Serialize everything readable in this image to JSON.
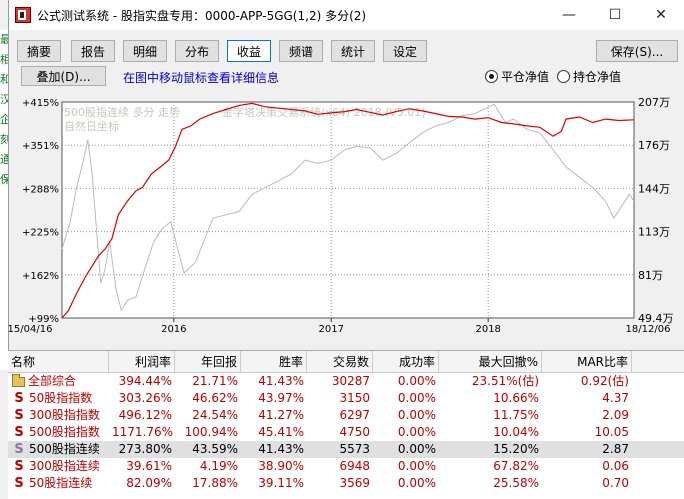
{
  "window": {
    "title": "公式测试系统 - 股指实盘专用：0000-APP-5GG(1,2) 多分(2)",
    "minimize_glyph": "—",
    "maximize_glyph": "☐",
    "close_glyph": "✕"
  },
  "toolbar": {
    "tabs": [
      "摘要",
      "报告",
      "明细",
      "分布",
      "收益",
      "频谱",
      "统计",
      "设定"
    ],
    "active_tab": "收益",
    "save_label": "保存(S)..."
  },
  "options": {
    "overlay_label": "叠加(D)...",
    "hint": "在图中移动鼠标查看详细信息",
    "radio_close": "平仓净值",
    "radio_hold": "持仓净值"
  },
  "background_strip": [
    "最",
    "相",
    "和",
    "汉",
    "企",
    "刻",
    "通",
    "保"
  ],
  "chart": {
    "watermark1": "500股指连续 多分 走势",
    "watermark2": "自然日坐标",
    "watermark3": "金字塔决策交易系统(x64) 2018 (V5.01)",
    "left_ticks": [
      "+415%",
      "+351%",
      "+288%",
      "+225%",
      "+162%",
      "+99%"
    ],
    "right_ticks": [
      "207万",
      "176万",
      "144万",
      "113万",
      "81万",
      "49.4万"
    ],
    "x_ticks": [
      "15/04/16",
      "2016",
      "2017",
      "2018",
      "18/12/06"
    ],
    "colors": {
      "equity": "#dd0000",
      "index": "#bbbbbb",
      "grid": "#9a9a9a",
      "plot_bg": "#ffffff"
    }
  },
  "chart_data": {
    "type": "line",
    "x_range": [
      "2015-04-16",
      "2018-12-06"
    ],
    "y_left_ticks": [
      "+415%",
      "+351%",
      "+288%",
      "+225%",
      "+162%",
      "+99%"
    ],
    "y_right_ticks": [
      "207万",
      "176万",
      "144万",
      "113万",
      "81万",
      "49.4万"
    ],
    "ylim_left_pct": [
      99,
      415
    ],
    "series": [
      {
        "color": "#dd0000",
        "points": [
          [
            "2015-04-16",
            99
          ],
          [
            "2015-05-01",
            110
          ],
          [
            "2015-05-20",
            135
          ],
          [
            "2015-06-10",
            160
          ],
          [
            "2015-06-25",
            175
          ],
          [
            "2015-07-10",
            190
          ],
          [
            "2015-07-25",
            200
          ],
          [
            "2015-08-10",
            215
          ],
          [
            "2015-08-25",
            250
          ],
          [
            "2015-09-15",
            270
          ],
          [
            "2015-10-05",
            285
          ],
          [
            "2015-10-20",
            290
          ],
          [
            "2015-11-10",
            310
          ],
          [
            "2015-12-01",
            320
          ],
          [
            "2015-12-20",
            330
          ],
          [
            "2016-01-05",
            350
          ],
          [
            "2016-01-20",
            375
          ],
          [
            "2016-02-10",
            380
          ],
          [
            "2016-03-01",
            390
          ],
          [
            "2016-04-01",
            398
          ],
          [
            "2016-05-01",
            404
          ],
          [
            "2016-06-01",
            410
          ],
          [
            "2016-07-01",
            413
          ],
          [
            "2016-08-01",
            408
          ],
          [
            "2016-09-01",
            406
          ],
          [
            "2016-10-01",
            404
          ],
          [
            "2016-11-01",
            402
          ],
          [
            "2016-12-01",
            397
          ],
          [
            "2017-01-01",
            399
          ],
          [
            "2017-02-01",
            401
          ],
          [
            "2017-03-01",
            404
          ],
          [
            "2017-04-01",
            400
          ],
          [
            "2017-05-01",
            396
          ],
          [
            "2017-06-01",
            401
          ],
          [
            "2017-07-01",
            405
          ],
          [
            "2017-08-01",
            402
          ],
          [
            "2017-09-01",
            398
          ],
          [
            "2017-10-01",
            394
          ],
          [
            "2017-11-01",
            393
          ],
          [
            "2017-12-01",
            390
          ],
          [
            "2018-01-01",
            392
          ],
          [
            "2018-02-01",
            385
          ],
          [
            "2018-03-01",
            383
          ],
          [
            "2018-04-01",
            380
          ],
          [
            "2018-05-01",
            378
          ],
          [
            "2018-06-01",
            365
          ],
          [
            "2018-06-20",
            372
          ],
          [
            "2018-07-01",
            390
          ],
          [
            "2018-08-01",
            393
          ],
          [
            "2018-09-01",
            385
          ],
          [
            "2018-10-01",
            390
          ],
          [
            "2018-11-01",
            388
          ],
          [
            "2018-12-06",
            389
          ]
        ]
      },
      {
        "color": "#bbbbbb",
        "points": [
          [
            "2015-04-16",
            200
          ],
          [
            "2015-05-05",
            240
          ],
          [
            "2015-05-20",
            290
          ],
          [
            "2015-06-05",
            330
          ],
          [
            "2015-06-15",
            360
          ],
          [
            "2015-06-25",
            310
          ],
          [
            "2015-07-05",
            230
          ],
          [
            "2015-07-15",
            150
          ],
          [
            "2015-07-25",
            170
          ],
          [
            "2015-08-05",
            210
          ],
          [
            "2015-08-20",
            140
          ],
          [
            "2015-09-01",
            110
          ],
          [
            "2015-09-15",
            125
          ],
          [
            "2015-10-05",
            130
          ],
          [
            "2015-10-25",
            170
          ],
          [
            "2015-11-15",
            210
          ],
          [
            "2015-12-05",
            230
          ],
          [
            "2015-12-25",
            240
          ],
          [
            "2016-01-10",
            200
          ],
          [
            "2016-01-25",
            165
          ],
          [
            "2016-02-20",
            180
          ],
          [
            "2016-03-10",
            210
          ],
          [
            "2016-04-01",
            245
          ],
          [
            "2016-05-01",
            250
          ],
          [
            "2016-06-01",
            255
          ],
          [
            "2016-07-01",
            280
          ],
          [
            "2016-08-01",
            290
          ],
          [
            "2016-09-01",
            300
          ],
          [
            "2016-10-01",
            310
          ],
          [
            "2016-11-01",
            330
          ],
          [
            "2016-12-01",
            325
          ],
          [
            "2017-01-01",
            330
          ],
          [
            "2017-02-01",
            345
          ],
          [
            "2017-03-01",
            350
          ],
          [
            "2017-04-01",
            348
          ],
          [
            "2017-05-01",
            330
          ],
          [
            "2017-06-01",
            340
          ],
          [
            "2017-07-01",
            355
          ],
          [
            "2017-08-01",
            370
          ],
          [
            "2017-09-01",
            380
          ],
          [
            "2017-10-01",
            385
          ],
          [
            "2017-11-01",
            395
          ],
          [
            "2017-12-01",
            398
          ],
          [
            "2018-01-15",
            412
          ],
          [
            "2018-02-10",
            385
          ],
          [
            "2018-03-01",
            390
          ],
          [
            "2018-04-01",
            375
          ],
          [
            "2018-05-01",
            370
          ],
          [
            "2018-06-01",
            345
          ],
          [
            "2018-07-01",
            320
          ],
          [
            "2018-08-01",
            305
          ],
          [
            "2018-09-01",
            290
          ],
          [
            "2018-10-01",
            270
          ],
          [
            "2018-10-20",
            245
          ],
          [
            "2018-11-10",
            265
          ],
          [
            "2018-11-25",
            280
          ],
          [
            "2018-12-06",
            270
          ]
        ]
      }
    ]
  },
  "table": {
    "columns": [
      "名称",
      "利润率",
      "年回报",
      "胜率",
      "交易数",
      "成功率",
      "最大回撤%",
      "MAR比率"
    ],
    "rows": [
      {
        "icon": "folder",
        "name": "全部综合",
        "profit": "394.44%",
        "annual": "21.71%",
        "win": "41.43%",
        "trades": "30287",
        "success": "0.00%",
        "mdd": "23.51%(估)",
        "mar": "0.92(估)"
      },
      {
        "icon": "S",
        "name": "50股指指数",
        "profit": "303.26%",
        "annual": "46.62%",
        "win": "43.97%",
        "trades": "3150",
        "success": "0.00%",
        "mdd": "10.66%",
        "mar": "4.37"
      },
      {
        "icon": "S",
        "name": "300股指指数",
        "profit": "496.12%",
        "annual": "24.54%",
        "win": "41.27%",
        "trades": "6297",
        "success": "0.00%",
        "mdd": "11.75%",
        "mar": "2.09"
      },
      {
        "icon": "S",
        "name": "500股指指数",
        "profit": "1171.76%",
        "annual": "100.94%",
        "win": "45.41%",
        "trades": "4750",
        "success": "0.00%",
        "mdd": "10.04%",
        "mar": "10.05"
      },
      {
        "icon": "S",
        "name": "500股指连续",
        "profit": "273.80%",
        "annual": "43.59%",
        "win": "41.43%",
        "trades": "5573",
        "success": "0.00%",
        "mdd": "15.20%",
        "mar": "2.87"
      },
      {
        "icon": "S",
        "name": "300股指连续",
        "profit": "39.61%",
        "annual": "4.19%",
        "win": "38.90%",
        "trades": "6948",
        "success": "0.00%",
        "mdd": "67.82%",
        "mar": "0.06"
      },
      {
        "icon": "S",
        "name": "50股指连续",
        "profit": "82.09%",
        "annual": "17.88%",
        "win": "39.11%",
        "trades": "3569",
        "success": "0.00%",
        "mdd": "25.58%",
        "mar": "0.70"
      }
    ],
    "selected_row": 4
  }
}
